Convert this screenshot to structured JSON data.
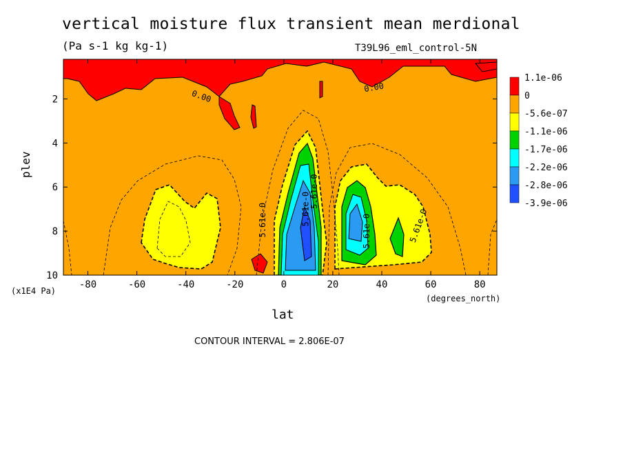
{
  "chart_data": {
    "type": "heatmap",
    "title": "vertical moisture flux transient mean merdional",
    "subtitle": "(Pa s-1 kg kg-1)",
    "run_label": "T39L96_eml_control-5N",
    "xlabel": "lat",
    "x_units": "(degrees_north)",
    "ylabel": "plev",
    "y_multiplier": "(x1E4 Pa)",
    "xlim": [
      -90,
      87
    ],
    "ylim": [
      10,
      0.2
    ],
    "x_ticks": [
      "-80",
      "-60",
      "-40",
      "-20",
      "0",
      "20",
      "40",
      "60",
      "80"
    ],
    "y_ticks": [
      "2",
      "4",
      "6",
      "8",
      "10"
    ],
    "contour_interval_text": "CONTOUR INTERVAL = 2.806E-07",
    "legend": {
      "labels": [
        "1.1e-06",
        "0",
        "-5.6e-07",
        "-1.1e-06",
        "-1.7e-06",
        "-2.2e-06",
        "-2.8e-06",
        "-3.9e-06"
      ],
      "colors": [
        "#ff0000",
        "#ffa500",
        "#ffff00",
        "#00d200",
        "#00ffff",
        "#2b9af2",
        "#1f50ff"
      ]
    },
    "contour_labels": [
      "0.00",
      "0.00",
      "5.61e-0",
      "5.61e-0",
      "5.61e-0",
      "5.61e-0",
      "5.61e-0"
    ],
    "features": [
      {
        "name": "upper positive band",
        "lat_range": [
          -90,
          87
        ],
        "plev_range": [
          0.2,
          2.5
        ],
        "sign": "positive"
      },
      {
        "name": "southern subtropical minimum",
        "lat_center": -45,
        "plev_center": 8,
        "min_value": -1.1e-06
      },
      {
        "name": "equatorial minimum",
        "lat_center": 10,
        "plev_center": 8,
        "min_value": -3.9e-06
      },
      {
        "name": "northern subtropical minimum",
        "lat_center": 30,
        "plev_center": 7.5,
        "min_value": -2.8e-06
      },
      {
        "name": "northern secondary minimum",
        "lat_center": 48,
        "plev_center": 8.3,
        "min_value": -1.7e-06
      }
    ]
  }
}
